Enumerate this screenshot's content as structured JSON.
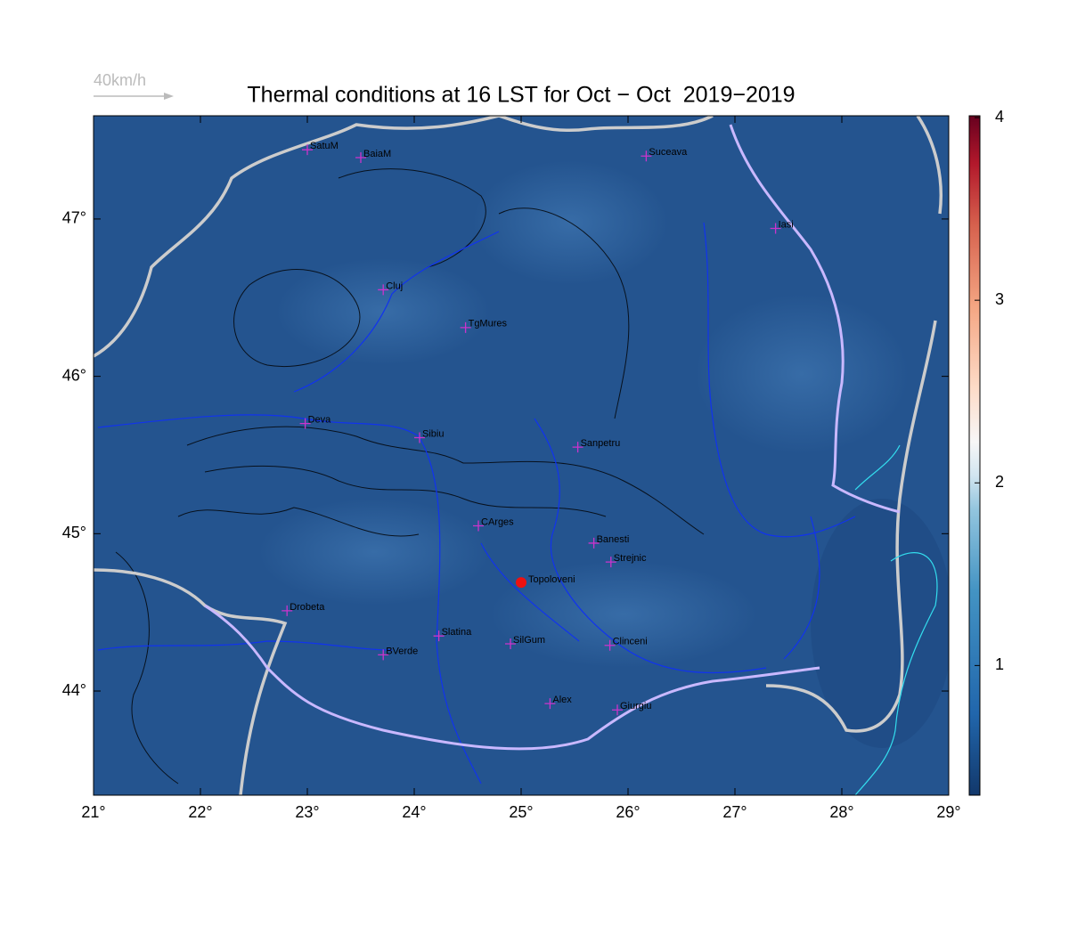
{
  "title": "Thermal conditions at 16 LST for Oct − Oct  2019−2019",
  "wind_scale_label": "40km/h",
  "map": {
    "xlim": [
      21,
      29
    ],
    "ylim": [
      43.338,
      47.656
    ],
    "xticks": [
      {
        "value": 21,
        "label": "21°"
      },
      {
        "value": 22,
        "label": "22°"
      },
      {
        "value": 23,
        "label": "23°"
      },
      {
        "value": 24,
        "label": "24°"
      },
      {
        "value": 25,
        "label": "25°"
      },
      {
        "value": 26,
        "label": "26°"
      },
      {
        "value": 27,
        "label": "27°"
      },
      {
        "value": 28,
        "label": "28°"
      },
      {
        "value": 29,
        "label": "29°"
      }
    ],
    "yticks": [
      {
        "value": 44,
        "label": "44°"
      },
      {
        "value": 45,
        "label": "45°"
      },
      {
        "value": 46,
        "label": "46°"
      },
      {
        "value": 47,
        "label": "47°"
      }
    ],
    "site_color": "#cc33cc",
    "sites": [
      {
        "name": "SatuM",
        "lon": 23.0,
        "lat": 47.44
      },
      {
        "name": "BaiaM",
        "lon": 23.5,
        "lat": 47.39
      },
      {
        "name": "Suceava",
        "lon": 26.17,
        "lat": 47.4
      },
      {
        "name": "Iasi",
        "lon": 27.38,
        "lat": 46.94
      },
      {
        "name": "Cluj",
        "lon": 23.71,
        "lat": 46.55
      },
      {
        "name": "TgMures",
        "lon": 24.48,
        "lat": 46.31
      },
      {
        "name": "Deva",
        "lon": 22.98,
        "lat": 45.7
      },
      {
        "name": "Sibiu",
        "lon": 24.05,
        "lat": 45.61
      },
      {
        "name": "Sanpetru",
        "lon": 25.53,
        "lat": 45.55
      },
      {
        "name": "CArges",
        "lon": 24.6,
        "lat": 45.05
      },
      {
        "name": "Banesti",
        "lon": 25.68,
        "lat": 44.94
      },
      {
        "name": "Strejnic",
        "lon": 25.84,
        "lat": 44.82
      },
      {
        "name": "Drobeta",
        "lon": 22.81,
        "lat": 44.51
      },
      {
        "name": "Slatina",
        "lon": 24.23,
        "lat": 44.35
      },
      {
        "name": "SilGum",
        "lon": 24.9,
        "lat": 44.3
      },
      {
        "name": "Clinceni",
        "lon": 25.83,
        "lat": 44.29
      },
      {
        "name": "BVerde",
        "lon": 23.71,
        "lat": 44.23
      },
      {
        "name": "Alex",
        "lon": 25.27,
        "lat": 43.92
      },
      {
        "name": "Giurgiu",
        "lon": 25.9,
        "lat": 43.88
      }
    ],
    "highlight": {
      "name": "Topoloveni",
      "lon": 25.0,
      "lat": 44.69,
      "color": "#ee1111"
    }
  },
  "colorbar": {
    "clim": [
      0.29,
      4.01
    ],
    "ticks": [
      1,
      2,
      3,
      4
    ]
  }
}
